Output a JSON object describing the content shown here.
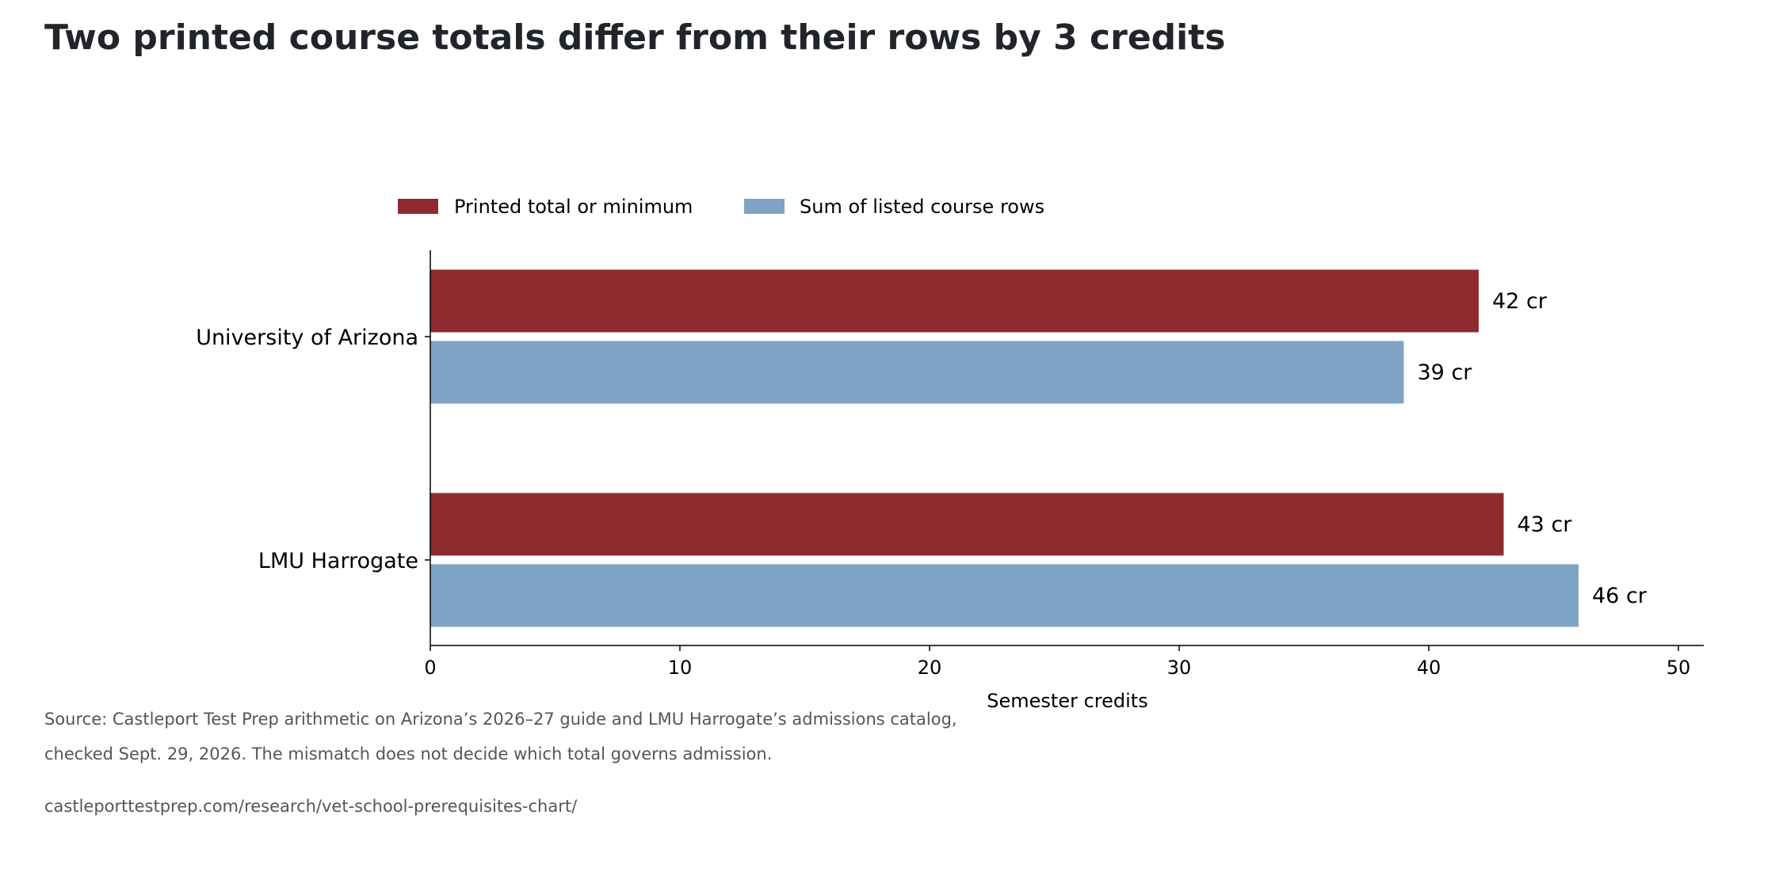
{
  "title": "Two printed course totals differ from their rows by 3 credits",
  "chart_data": {
    "type": "bar",
    "orientation": "horizontal",
    "categories": [
      "University of Arizona",
      "LMU Harrogate"
    ],
    "series": [
      {
        "name": "Printed total or minimum",
        "color": "#8e2b2f",
        "values": [
          42,
          43
        ],
        "labels": [
          "42 cr",
          "43 cr"
        ]
      },
      {
        "name": "Sum of listed course rows",
        "color": "#7ea3c4",
        "values": [
          39,
          46
        ],
        "labels": [
          "39 cr",
          "46 cr"
        ]
      }
    ],
    "xlabel": "Semester credits",
    "xlim": [
      0,
      51
    ],
    "xticks": [
      "0",
      "10",
      "20",
      "30",
      "40",
      "50"
    ],
    "xtick_values": [
      0,
      10,
      20,
      30,
      40,
      50
    ],
    "legend": "top",
    "grid": false
  },
  "footer": {
    "source_line1": "Source: Castleport Test Prep arithmetic on Arizona’s 2026–27 guide and LMU Harrogate’s admissions catalog,",
    "source_line2": "checked Sept. 29, 2026. The mismatch does not decide which total governs admission.",
    "url": "castleporttestprep.com/research/vet-school-prerequisites-chart/"
  }
}
